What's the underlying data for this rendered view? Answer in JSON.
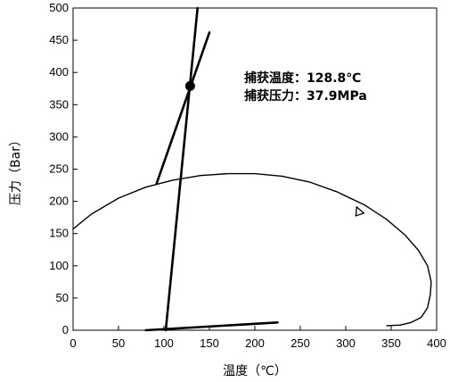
{
  "chart_data": {
    "type": "line",
    "xlabel": "温度（℃）",
    "ylabel": "压力（Bar）",
    "xlim": [
      0,
      400
    ],
    "ylim": [
      0,
      500
    ],
    "xticks": [
      0,
      50,
      100,
      150,
      200,
      250,
      300,
      350,
      400
    ],
    "yticks": [
      0,
      50,
      100,
      150,
      200,
      250,
      300,
      350,
      400,
      450,
      500
    ],
    "grid": false,
    "series": [
      {
        "x": [
          0,
          20,
          50,
          80,
          110,
          140,
          170,
          200,
          230,
          260,
          290,
          320,
          345,
          365,
          380,
          390,
          394,
          393,
          390,
          383,
          372,
          360,
          345
        ],
        "y": [
          157,
          180,
          205,
          222,
          233,
          240,
          243,
          243,
          239,
          230,
          215,
          195,
          172,
          148,
          124,
          100,
          75,
          55,
          35,
          20,
          12,
          8,
          7
        ]
      },
      {
        "x": [
          92,
          150
        ],
        "y": [
          228,
          462
        ]
      },
      {
        "x": [
          102,
          137
        ],
        "y": [
          0,
          500
        ]
      },
      {
        "x": [
          80,
          225
        ],
        "y": [
          0,
          12
        ]
      }
    ],
    "points": [
      {
        "x": 128.8,
        "y": 379
      }
    ],
    "arrow": {
      "x": 315,
      "y": 183
    },
    "annotations": [
      "捕获温度：128.8℃",
      "捕获压力：37.9MPa"
    ]
  }
}
